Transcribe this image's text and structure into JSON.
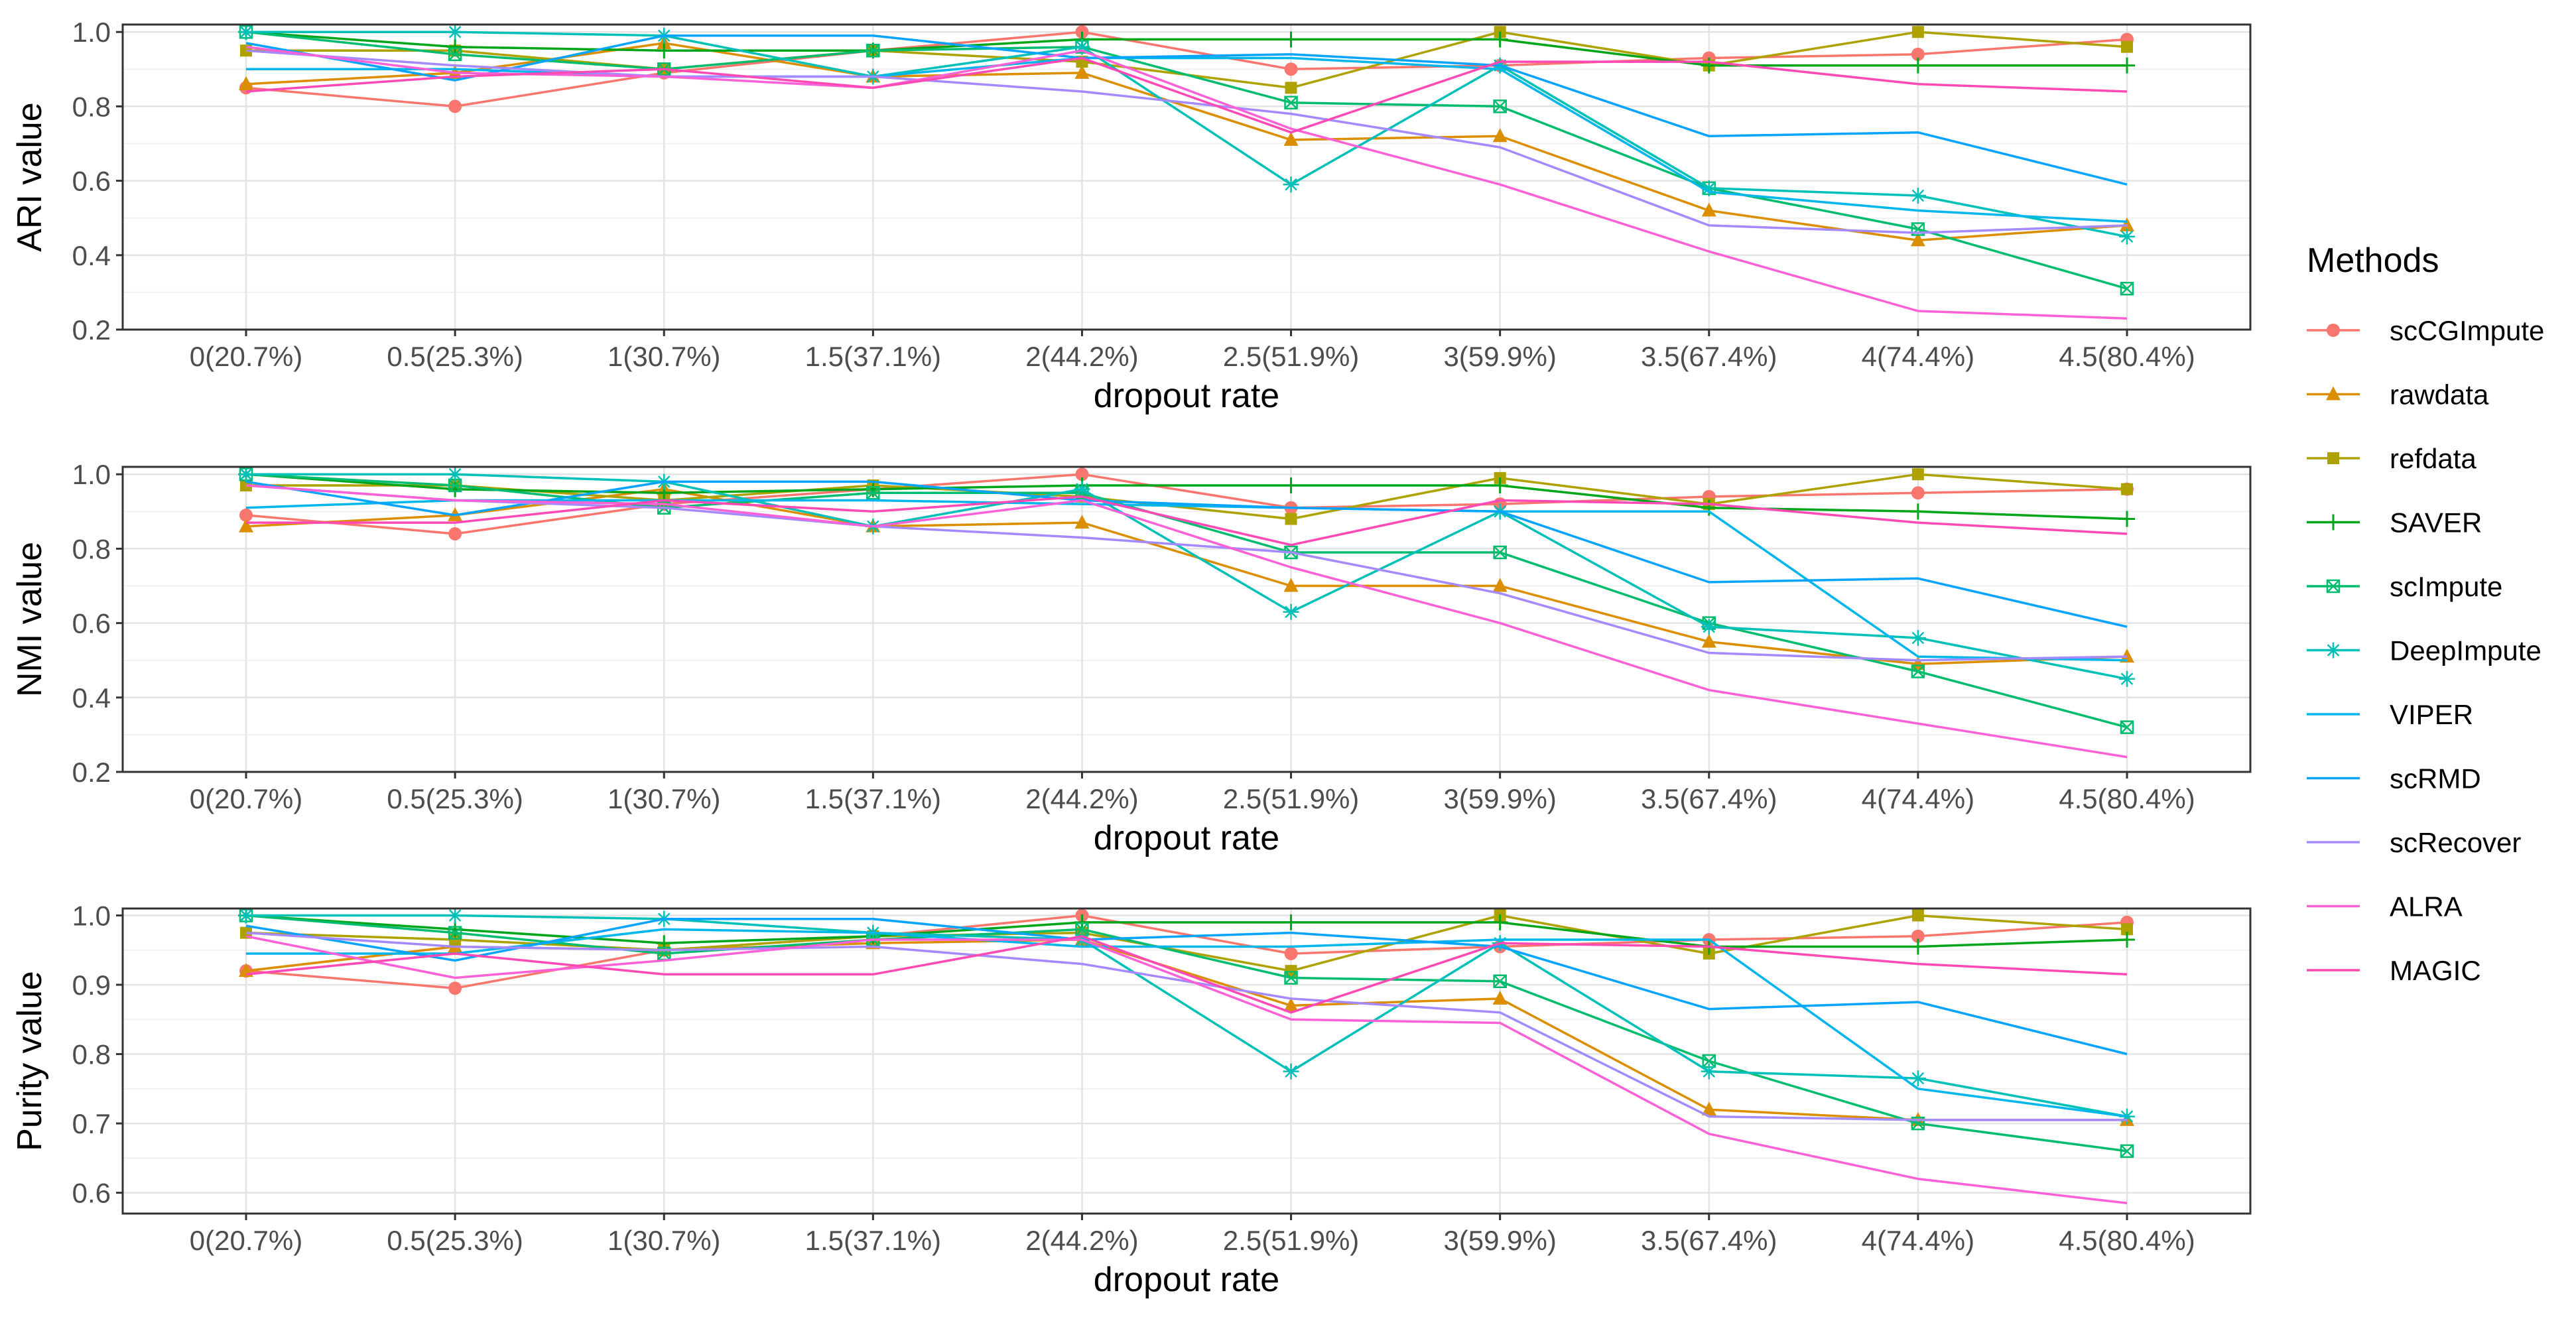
{
  "legend": {
    "title": "Methods",
    "items": [
      {
        "name": "scCGImpute",
        "color": "#F8766D",
        "shape": "circle"
      },
      {
        "name": "rawdata",
        "color": "#DB8E00",
        "shape": "triangle"
      },
      {
        "name": "refdata",
        "color": "#AEA200",
        "shape": "square"
      },
      {
        "name": "SAVER",
        "color": "#00A61A",
        "shape": "plus"
      },
      {
        "name": "scImpute",
        "color": "#00BC6F",
        "shape": "boxx"
      },
      {
        "name": "DeepImpute",
        "color": "#00C0B8",
        "shape": "star"
      },
      {
        "name": "VIPER",
        "color": "#00B6EB",
        "shape": "none"
      },
      {
        "name": "scRMD",
        "color": "#06A4FF",
        "shape": "none"
      },
      {
        "name": "scRecover",
        "color": "#A58AFF",
        "shape": "none"
      },
      {
        "name": "ALRA",
        "color": "#FB61D7",
        "shape": "none"
      },
      {
        "name": "MAGIC",
        "color": "#FF4AB6",
        "shape": "none"
      }
    ]
  },
  "chart_data": [
    {
      "type": "line",
      "title": "",
      "xlabel": "dropout rate",
      "ylabel": "ARI value",
      "categories": [
        "0(20.7%)",
        "0.5(25.3%)",
        "1(30.7%)",
        "1.5(37.1%)",
        "2(44.2%)",
        "2.5(51.9%)",
        "3(59.9%)",
        "3.5(67.4%)",
        "4(74.4%)",
        "4.5(80.4%)"
      ],
      "ylim": [
        0.2,
        1.02
      ],
      "yticks": [
        0.2,
        0.4,
        0.6,
        0.8,
        1.0
      ],
      "ytick_labels": [
        "0.2",
        "0.4",
        "0.6",
        "0.8",
        "1.0"
      ],
      "grid": true,
      "series": [
        {
          "name": "scCGImpute",
          "values": [
            0.85,
            0.8,
            0.89,
            0.95,
            1.0,
            0.9,
            0.91,
            0.93,
            0.94,
            0.98
          ]
        },
        {
          "name": "rawdata",
          "values": [
            0.86,
            0.89,
            0.97,
            0.88,
            0.89,
            0.71,
            0.72,
            0.52,
            0.44,
            0.48
          ]
        },
        {
          "name": "refdata",
          "values": [
            0.95,
            0.95,
            0.9,
            0.95,
            0.92,
            0.85,
            1.0,
            0.91,
            1.0,
            0.96
          ]
        },
        {
          "name": "SAVER",
          "values": [
            1.0,
            0.96,
            0.95,
            0.95,
            0.98,
            0.98,
            0.98,
            0.91,
            0.91,
            0.91
          ]
        },
        {
          "name": "scImpute",
          "values": [
            1.0,
            0.94,
            0.9,
            0.95,
            0.96,
            0.81,
            0.8,
            0.58,
            0.47,
            0.31
          ]
        },
        {
          "name": "DeepImpute",
          "values": [
            1.0,
            1.0,
            0.99,
            0.88,
            0.96,
            0.59,
            0.91,
            0.58,
            0.56,
            0.45
          ]
        },
        {
          "name": "VIPER",
          "values": [
            0.9,
            0.9,
            0.88,
            0.88,
            0.93,
            0.93,
            0.9,
            0.57,
            0.52,
            0.49
          ]
        },
        {
          "name": "scRMD",
          "values": [
            0.97,
            0.87,
            0.99,
            0.99,
            0.93,
            0.94,
            0.91,
            0.72,
            0.73,
            0.59
          ]
        },
        {
          "name": "scRecover",
          "values": [
            0.95,
            0.91,
            0.88,
            0.88,
            0.84,
            0.78,
            0.69,
            0.48,
            0.46,
            0.48
          ]
        },
        {
          "name": "ALRA",
          "values": [
            0.96,
            0.89,
            0.88,
            0.85,
            0.95,
            0.74,
            0.59,
            0.41,
            0.25,
            0.23
          ]
        },
        {
          "name": "MAGIC",
          "values": [
            0.84,
            0.88,
            0.9,
            0.85,
            0.93,
            0.73,
            0.92,
            0.92,
            0.86,
            0.84
          ]
        }
      ]
    },
    {
      "type": "line",
      "title": "",
      "xlabel": "dropout rate",
      "ylabel": "NMI value",
      "categories": [
        "0(20.7%)",
        "0.5(25.3%)",
        "1(30.7%)",
        "1.5(37.1%)",
        "2(44.2%)",
        "2.5(51.9%)",
        "3(59.9%)",
        "3.5(67.4%)",
        "4(74.4%)",
        "4.5(80.4%)"
      ],
      "ylim": [
        0.2,
        1.02
      ],
      "yticks": [
        0.2,
        0.4,
        0.6,
        0.8,
        1.0
      ],
      "ytick_labels": [
        "0.2",
        "0.4",
        "0.6",
        "0.8",
        "1.0"
      ],
      "grid": true,
      "series": [
        {
          "name": "scCGImpute",
          "values": [
            0.89,
            0.84,
            0.92,
            0.96,
            1.0,
            0.91,
            0.92,
            0.94,
            0.95,
            0.96
          ]
        },
        {
          "name": "rawdata",
          "values": [
            0.86,
            0.89,
            0.96,
            0.86,
            0.87,
            0.7,
            0.7,
            0.55,
            0.49,
            0.51
          ]
        },
        {
          "name": "refdata",
          "values": [
            0.97,
            0.97,
            0.93,
            0.97,
            0.94,
            0.88,
            0.99,
            0.92,
            1.0,
            0.96
          ]
        },
        {
          "name": "SAVER",
          "values": [
            1.0,
            0.96,
            0.95,
            0.96,
            0.97,
            0.97,
            0.97,
            0.91,
            0.9,
            0.88
          ]
        },
        {
          "name": "scImpute",
          "values": [
            1.0,
            0.97,
            0.91,
            0.95,
            0.95,
            0.79,
            0.79,
            0.6,
            0.47,
            0.32
          ]
        },
        {
          "name": "DeepImpute",
          "values": [
            1.0,
            1.0,
            0.98,
            0.86,
            0.96,
            0.63,
            0.9,
            0.59,
            0.56,
            0.45
          ]
        },
        {
          "name": "VIPER",
          "values": [
            0.91,
            0.93,
            0.93,
            0.93,
            0.92,
            0.91,
            0.9,
            0.9,
            0.51,
            0.5
          ]
        },
        {
          "name": "scRMD",
          "values": [
            0.98,
            0.89,
            0.98,
            0.98,
            0.93,
            0.91,
            0.9,
            0.71,
            0.72,
            0.59
          ]
        },
        {
          "name": "scRecover",
          "values": [
            0.97,
            0.93,
            0.91,
            0.86,
            0.83,
            0.79,
            0.68,
            0.52,
            0.5,
            0.51
          ]
        },
        {
          "name": "ALRA",
          "values": [
            0.97,
            0.93,
            0.92,
            0.86,
            0.93,
            0.75,
            0.6,
            0.42,
            0.33,
            0.24
          ]
        },
        {
          "name": "MAGIC",
          "values": [
            0.87,
            0.87,
            0.93,
            0.9,
            0.94,
            0.81,
            0.93,
            0.92,
            0.87,
            0.84
          ]
        }
      ]
    },
    {
      "type": "line",
      "title": "",
      "xlabel": "dropout rate",
      "ylabel": "Purity value",
      "categories": [
        "0(20.7%)",
        "0.5(25.3%)",
        "1(30.7%)",
        "1.5(37.1%)",
        "2(44.2%)",
        "2.5(51.9%)",
        "3(59.9%)",
        "3.5(67.4%)",
        "4(74.4%)",
        "4.5(80.4%)"
      ],
      "ylim": [
        0.57,
        1.01
      ],
      "yticks": [
        0.6,
        0.7,
        0.8,
        0.9,
        1.0
      ],
      "ytick_labels": [
        "0.6",
        "0.7",
        "0.8",
        "0.9",
        "1.0"
      ],
      "grid": true,
      "series": [
        {
          "name": "scCGImpute",
          "values": [
            0.92,
            0.895,
            0.95,
            0.97,
            1.0,
            0.945,
            0.955,
            0.965,
            0.97,
            0.99
          ]
        },
        {
          "name": "rawdata",
          "values": [
            0.92,
            0.955,
            0.95,
            0.96,
            0.965,
            0.87,
            0.88,
            0.72,
            0.705,
            0.705
          ]
        },
        {
          "name": "refdata",
          "values": [
            0.975,
            0.965,
            0.95,
            0.97,
            0.975,
            0.92,
            1.0,
            0.945,
            1.0,
            0.98
          ]
        },
        {
          "name": "SAVER",
          "values": [
            1.0,
            0.98,
            0.96,
            0.97,
            0.99,
            0.99,
            0.99,
            0.955,
            0.955,
            0.965
          ]
        },
        {
          "name": "scImpute",
          "values": [
            1.0,
            0.975,
            0.945,
            0.965,
            0.98,
            0.91,
            0.905,
            0.79,
            0.7,
            0.66
          ]
        },
        {
          "name": "DeepImpute",
          "values": [
            1.0,
            1.0,
            0.995,
            0.975,
            0.965,
            0.775,
            0.96,
            0.775,
            0.765,
            0.71
          ]
        },
        {
          "name": "VIPER",
          "values": [
            0.945,
            0.945,
            0.98,
            0.975,
            0.955,
            0.955,
            0.965,
            0.965,
            0.75,
            0.71
          ]
        },
        {
          "name": "scRMD",
          "values": [
            0.985,
            0.935,
            0.995,
            0.995,
            0.965,
            0.975,
            0.955,
            0.865,
            0.875,
            0.8
          ]
        },
        {
          "name": "scRecover",
          "values": [
            0.975,
            0.955,
            0.95,
            0.955,
            0.93,
            0.88,
            0.86,
            0.71,
            0.705,
            0.705
          ]
        },
        {
          "name": "ALRA",
          "values": [
            0.97,
            0.91,
            0.935,
            0.965,
            0.965,
            0.85,
            0.845,
            0.685,
            0.62,
            0.585
          ]
        },
        {
          "name": "MAGIC",
          "values": [
            0.915,
            0.945,
            0.915,
            0.915,
            0.97,
            0.86,
            0.96,
            0.955,
            0.93,
            0.915
          ]
        }
      ]
    }
  ]
}
